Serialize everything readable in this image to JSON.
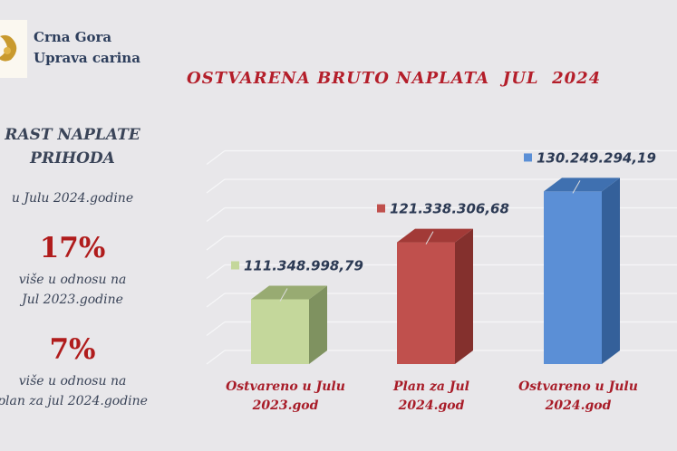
{
  "header": {
    "org_line1": "Crna Gora",
    "org_line2": "Uprava carina"
  },
  "sidebar": {
    "heading_line1": "RAST NAPLATE",
    "heading_line2": "PRIHODA",
    "period": "u Julu 2024.godine",
    "stat1": {
      "value": "17%",
      "line1": "više u  odnosu na",
      "line2": "Jul 2023.godine"
    },
    "stat2": {
      "value": "7%",
      "line1": "više u  odnosu na",
      "line2": "plan za jul 2024.godine"
    }
  },
  "chart_data": {
    "type": "bar",
    "title": "OSTVARENA BRUTO NAPLATA  JUL  2024",
    "categories": [
      [
        "Ostvareno u Julu",
        "2023.god"
      ],
      [
        "Plan za Jul",
        "2024.god"
      ],
      [
        "Ostvareno u Julu",
        "2024.god"
      ]
    ],
    "values": [
      111348998.79,
      121338306.68,
      130249294.19
    ],
    "data_labels": [
      "111.348.998,79",
      "121.338.306,68",
      "130.249.294,19"
    ],
    "colors": [
      "#c4d79b",
      "#c0504d",
      "#5b8fd6"
    ],
    "side_colors": [
      "#7f9260",
      "#84302d",
      "#34609a"
    ],
    "top_colors": [
      "#98ab72",
      "#a23a37",
      "#3f70b0"
    ],
    "ylim": [
      100000000,
      140000000
    ],
    "grid": true,
    "style": "3d"
  }
}
